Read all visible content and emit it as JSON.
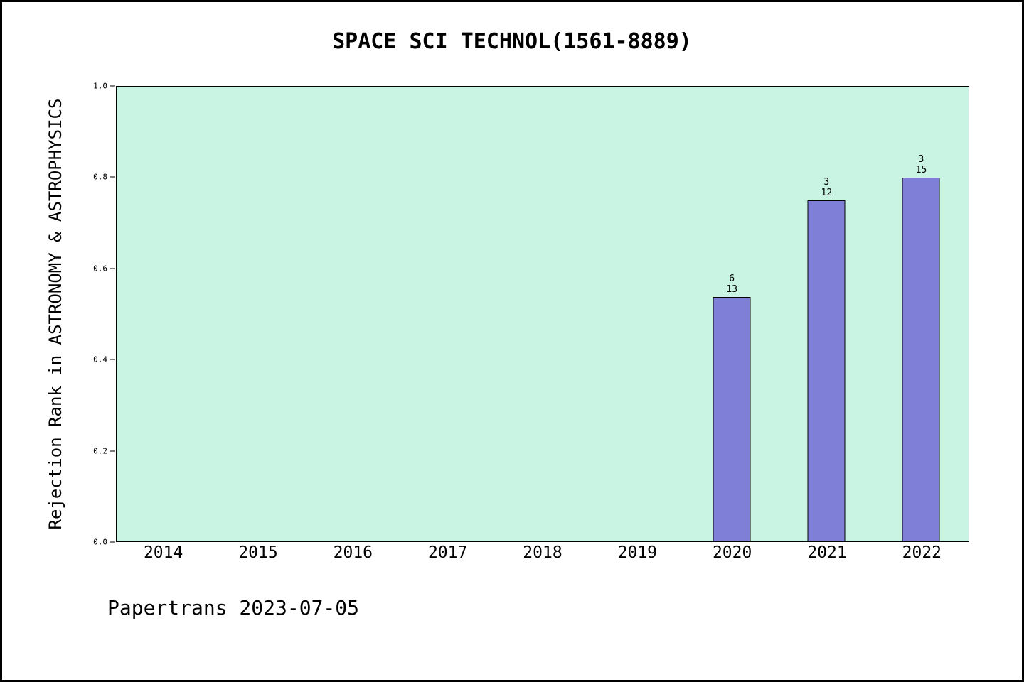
{
  "chart_data": {
    "type": "bar",
    "title": "SPACE SCI TECHNOL(1561-8889)",
    "xlabel": "",
    "ylabel": "Rejection Rank in ASTRONOMY & ASTROPHYSICS",
    "categories": [
      "2014",
      "2015",
      "2016",
      "2017",
      "2018",
      "2019",
      "2020",
      "2021",
      "2022"
    ],
    "values": [
      null,
      null,
      null,
      null,
      null,
      null,
      0.538,
      0.75,
      0.8
    ],
    "bar_labels": [
      null,
      null,
      null,
      null,
      null,
      null,
      [
        "6",
        "13"
      ],
      [
        "3",
        "12"
      ],
      [
        "3",
        "15"
      ]
    ],
    "ylim": [
      0,
      1
    ],
    "yticks": [
      "0.0",
      "0.2",
      "0.4",
      "0.6",
      "0.8",
      "1.0"
    ],
    "grid": false,
    "legend": null,
    "plot_background": "#c9f4e3",
    "bar_color": "#7f7fd8",
    "bar_edge_color": "#000000",
    "footer": "Papertrans 2023-07-05"
  }
}
